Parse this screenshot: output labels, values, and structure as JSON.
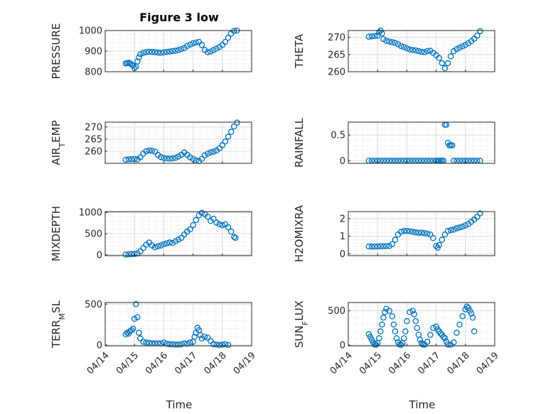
{
  "figure": {
    "title": "Figure 3 low",
    "x_label": "Time",
    "x_ticks": [
      "04/14",
      "04/15",
      "04/16",
      "04/17",
      "04/18",
      "04/19"
    ],
    "marker_color": "#0072BD"
  },
  "chart_data": [
    {
      "type": "scatter",
      "name_label": "PRESSURE",
      "ylim": [
        800,
        1000
      ],
      "yticks": [
        "800",
        "900",
        "1000"
      ],
      "x": [
        14.7,
        14.75,
        14.8,
        14.85,
        14.9,
        14.95,
        15.0,
        15.05,
        15.1,
        15.15,
        15.2,
        15.3,
        15.4,
        15.5,
        15.6,
        15.7,
        15.8,
        15.9,
        16.0,
        16.1,
        16.2,
        16.3,
        16.4,
        16.5,
        16.6,
        16.7,
        16.8,
        16.9,
        17.0,
        17.1,
        17.2,
        17.3,
        17.4,
        17.5,
        17.6,
        17.7,
        17.8,
        17.9,
        18.0,
        18.1,
        18.2,
        18.3,
        18.4,
        18.5
      ],
      "y": [
        840,
        842,
        843,
        840,
        835,
        830,
        818,
        825,
        850,
        870,
        885,
        892,
        895,
        897,
        896,
        895,
        893,
        892,
        894,
        896,
        898,
        900,
        902,
        905,
        910,
        915,
        925,
        932,
        938,
        942,
        945,
        930,
        905,
        895,
        898,
        905,
        912,
        920,
        930,
        945,
        965,
        985,
        998,
        1000
      ]
    },
    {
      "type": "scatter",
      "name_label": "THETA",
      "ylim": [
        260,
        272
      ],
      "yticks": [
        "260",
        "265",
        "270"
      ],
      "x": [
        14.7,
        14.8,
        14.9,
        15.0,
        15.05,
        15.1,
        15.15,
        15.2,
        15.3,
        15.4,
        15.5,
        15.6,
        15.7,
        15.8,
        15.9,
        16.0,
        16.1,
        16.2,
        16.3,
        16.4,
        16.5,
        16.6,
        16.7,
        16.8,
        16.9,
        17.0,
        17.1,
        17.2,
        17.3,
        17.4,
        17.5,
        17.6,
        17.7,
        17.8,
        17.9,
        18.0,
        18.1,
        18.2,
        18.3,
        18.4,
        18.5
      ],
      "y": [
        270.2,
        270.3,
        270.4,
        270.5,
        271.5,
        272.0,
        271.2,
        269.5,
        269.0,
        268.8,
        268.6,
        268.4,
        268.0,
        267.5,
        267.2,
        266.8,
        266.5,
        266.3,
        266.2,
        266.0,
        265.8,
        265.7,
        266.0,
        266.1,
        265.5,
        264.8,
        264.0,
        262.5,
        261.0,
        262.5,
        264.5,
        266.0,
        266.6,
        267.0,
        267.4,
        267.8,
        268.3,
        268.9,
        269.6,
        270.5,
        271.8
      ]
    },
    {
      "type": "scatter",
      "name_label": "AIR_TEMP",
      "ylim": [
        255,
        272
      ],
      "yticks": [
        "260",
        "265",
        "270"
      ],
      "x": [
        14.7,
        14.8,
        14.9,
        15.0,
        15.1,
        15.2,
        15.3,
        15.4,
        15.5,
        15.6,
        15.7,
        15.8,
        15.9,
        16.0,
        16.1,
        16.2,
        16.3,
        16.4,
        16.5,
        16.6,
        16.7,
        16.8,
        16.9,
        17.0,
        17.1,
        17.2,
        17.3,
        17.4,
        17.5,
        17.6,
        17.7,
        17.8,
        17.9,
        18.0,
        18.1,
        18.2,
        18.3,
        18.4,
        18.5
      ],
      "y": [
        256.5,
        256.6,
        256.7,
        256.8,
        256.6,
        257.5,
        259.0,
        260.0,
        260.3,
        260.2,
        259.8,
        258.5,
        257.6,
        257.2,
        257.0,
        256.9,
        257.0,
        257.3,
        257.8,
        258.5,
        259.5,
        258.5,
        257.5,
        256.8,
        256.2,
        255.9,
        256.8,
        258.3,
        259.0,
        259.5,
        259.8,
        260.3,
        261.2,
        262.5,
        264.0,
        266.0,
        268.0,
        270.2,
        271.8
      ]
    },
    {
      "type": "scatter",
      "name_label": "RAINFALL",
      "ylim": [
        -0.05,
        0.75
      ],
      "yticks": [
        "0",
        "0.5"
      ],
      "x": [
        14.7,
        14.8,
        14.9,
        15.0,
        15.1,
        15.2,
        15.3,
        15.4,
        15.5,
        15.6,
        15.7,
        15.8,
        15.9,
        16.0,
        16.1,
        16.2,
        16.3,
        16.4,
        16.5,
        16.6,
        16.7,
        16.8,
        16.9,
        17.0,
        17.05,
        17.1,
        17.15,
        17.2,
        17.25,
        17.3,
        17.35,
        17.4,
        17.45,
        17.5,
        17.55,
        17.6,
        17.7,
        17.8,
        17.9,
        18.0,
        18.1,
        18.2,
        18.3,
        18.4,
        18.5
      ],
      "y": [
        0,
        0,
        0,
        0,
        0,
        0,
        0,
        0,
        0,
        0,
        0,
        0,
        0,
        0,
        0,
        0,
        0,
        0,
        0,
        0,
        0,
        0,
        0,
        0,
        0,
        0,
        0,
        0,
        0,
        0.7,
        0.7,
        0.35,
        0.3,
        0.3,
        0.3,
        0,
        0,
        0,
        0,
        0,
        0,
        0,
        0,
        0,
        0
      ]
    },
    {
      "type": "scatter",
      "name_label": "MIXDEPTH",
      "ylim": [
        -20,
        1020
      ],
      "yticks": [
        "0",
        "500",
        "1000"
      ],
      "x": [
        14.7,
        14.8,
        14.9,
        15.0,
        15.1,
        15.2,
        15.3,
        15.4,
        15.5,
        15.6,
        15.7,
        15.8,
        15.9,
        16.0,
        16.1,
        16.2,
        16.3,
        16.4,
        16.5,
        16.6,
        16.7,
        16.8,
        16.9,
        17.0,
        17.1,
        17.2,
        17.3,
        17.4,
        17.5,
        17.6,
        17.7,
        17.8,
        17.9,
        18.0,
        18.1,
        18.2,
        18.3,
        18.4,
        18.45
      ],
      "y": [
        5,
        10,
        15,
        20,
        30,
        80,
        160,
        240,
        290,
        220,
        180,
        200,
        220,
        250,
        270,
        290,
        280,
        320,
        360,
        400,
        480,
        550,
        600,
        700,
        820,
        930,
        990,
        960,
        900,
        800,
        850,
        760,
        720,
        700,
        720,
        650,
        550,
        420,
        400
      ]
    },
    {
      "type": "scatter",
      "name_label": "H2OMIXRA",
      "ylim": [
        -0.1,
        2.4
      ],
      "yticks": [
        "0",
        "1",
        "2"
      ],
      "x": [
        14.7,
        14.8,
        14.9,
        15.0,
        15.1,
        15.2,
        15.3,
        15.4,
        15.5,
        15.6,
        15.7,
        15.8,
        15.9,
        16.0,
        16.1,
        16.2,
        16.3,
        16.4,
        16.5,
        16.6,
        16.7,
        16.8,
        16.9,
        17.0,
        17.05,
        17.1,
        17.2,
        17.3,
        17.4,
        17.5,
        17.6,
        17.7,
        17.8,
        17.9,
        18.0,
        18.1,
        18.2,
        18.3,
        18.4,
        18.5
      ],
      "y": [
        0.42,
        0.42,
        0.42,
        0.42,
        0.43,
        0.43,
        0.44,
        0.45,
        0.55,
        0.8,
        1.1,
        1.25,
        1.3,
        1.3,
        1.28,
        1.25,
        1.22,
        1.2,
        1.2,
        1.18,
        1.15,
        1.1,
        0.9,
        0.45,
        0.35,
        0.5,
        0.8,
        1.1,
        1.3,
        1.35,
        1.38,
        1.45,
        1.5,
        1.55,
        1.62,
        1.7,
        1.82,
        1.95,
        2.1,
        2.3
      ]
    },
    {
      "type": "scatter",
      "name_label": "TERR_MSL",
      "ylim": [
        -10,
        520
      ],
      "yticks": [
        "0",
        "500"
      ],
      "x": [
        14.7,
        14.75,
        14.8,
        14.85,
        14.9,
        14.95,
        15.0,
        15.05,
        15.1,
        15.15,
        15.2,
        15.3,
        15.4,
        15.5,
        15.6,
        15.7,
        15.8,
        15.9,
        16.0,
        16.1,
        16.2,
        16.3,
        16.4,
        16.5,
        16.6,
        16.7,
        16.8,
        16.9,
        17.0,
        17.05,
        17.1,
        17.15,
        17.2,
        17.25,
        17.3,
        17.4,
        17.5,
        17.6,
        17.7,
        17.8,
        17.9,
        18.0,
        18.1,
        18.2
      ],
      "y": [
        130,
        150,
        140,
        170,
        180,
        200,
        320,
        500,
        340,
        150,
        80,
        40,
        30,
        25,
        20,
        20,
        20,
        18,
        30,
        15,
        10,
        8,
        5,
        5,
        10,
        20,
        15,
        30,
        40,
        100,
        150,
        210,
        180,
        120,
        80,
        100,
        90,
        50,
        10,
        5,
        0,
        5,
        10,
        0
      ]
    },
    {
      "type": "scatter",
      "name_label": "SUN_FLUX",
      "ylim": [
        -10,
        620
      ],
      "yticks": [
        "0",
        "500"
      ],
      "x": [
        14.7,
        14.75,
        14.8,
        14.85,
        14.9,
        14.95,
        15.0,
        15.05,
        15.1,
        15.15,
        15.2,
        15.25,
        15.3,
        15.4,
        15.5,
        15.55,
        15.6,
        15.65,
        15.7,
        15.75,
        15.8,
        15.85,
        15.9,
        15.95,
        16.0,
        16.1,
        16.2,
        16.25,
        16.3,
        16.35,
        16.4,
        16.45,
        16.5,
        16.55,
        16.6,
        16.7,
        16.8,
        16.9,
        17.0,
        17.05,
        17.1,
        17.15,
        17.2,
        17.25,
        17.3,
        17.35,
        17.4,
        17.5,
        17.6,
        17.7,
        17.8,
        17.9,
        18.0,
        18.05,
        18.1,
        18.15,
        18.2,
        18.25,
        18.3
      ],
      "y": [
        160,
        120,
        80,
        40,
        10,
        5,
        30,
        100,
        200,
        300,
        400,
        480,
        530,
        500,
        420,
        300,
        200,
        100,
        40,
        10,
        5,
        30,
        100,
        200,
        350,
        480,
        500,
        450,
        350,
        250,
        150,
        80,
        30,
        10,
        5,
        50,
        150,
        250,
        270,
        230,
        200,
        170,
        150,
        120,
        100,
        50,
        10,
        5,
        40,
        180,
        300,
        420,
        520,
        560,
        540,
        500,
        460,
        400,
        200
      ]
    }
  ]
}
